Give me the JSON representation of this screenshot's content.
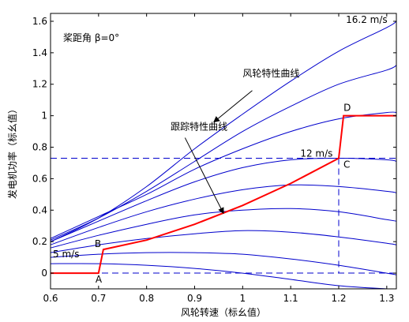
{
  "chart_data": {
    "type": "line",
    "xlabel": "风轮转速（标幺值）",
    "ylabel": "发电机功率（标幺值）",
    "xlim": [
      0.6,
      1.32
    ],
    "ylim": [
      -0.1,
      1.65
    ],
    "xticks": [
      0.6,
      0.7,
      0.8,
      0.9,
      1,
      1.1,
      1.2,
      1.3
    ],
    "xtick_labels": [
      "0.6",
      "0.7",
      "0.8",
      "0.9",
      "1",
      "1.1",
      "1.2",
      "1.3"
    ],
    "yticks": [
      0,
      0.2,
      0.4,
      0.6,
      0.8,
      1,
      1.2,
      1.4,
      1.6
    ],
    "ytick_labels": [
      "0",
      "0.2",
      "0.4",
      "0.6",
      "0.8",
      "1",
      "1.2",
      "1.4",
      "1.6"
    ],
    "grid": false,
    "pitch_label": "桨距角 β=0°",
    "wind_curve_color": "#0000cc",
    "tracking_color": "#ff0000",
    "wind_curves": [
      {
        "name": "",
        "x": [
          0.6,
          0.7,
          0.8,
          0.9,
          1.0,
          1.1,
          1.2,
          1.3,
          1.32
        ],
        "y": [
          0.2,
          0.35,
          0.55,
          0.79,
          1.01,
          1.22,
          1.41,
          1.56,
          1.6
        ]
      },
      {
        "name": "",
        "x": [
          0.6,
          0.7,
          0.8,
          0.9,
          1.0,
          1.1,
          1.2,
          1.3,
          1.32
        ],
        "y": [
          0.21,
          0.35,
          0.52,
          0.71,
          0.9,
          1.06,
          1.2,
          1.29,
          1.32
        ]
      },
      {
        "name": "",
        "x": [
          0.6,
          0.7,
          0.8,
          0.9,
          1.0,
          1.1,
          1.2,
          1.3,
          1.32
        ],
        "y": [
          0.22,
          0.36,
          0.5,
          0.66,
          0.79,
          0.9,
          0.98,
          1.02,
          1.02
        ]
      },
      {
        "name": "",
        "x": [
          0.6,
          0.7,
          0.8,
          0.9,
          1.0,
          1.1,
          1.2,
          1.3,
          1.32
        ],
        "y": [
          0.2,
          0.33,
          0.46,
          0.58,
          0.67,
          0.72,
          0.73,
          0.72,
          0.71
        ]
      },
      {
        "name": "",
        "x": [
          0.6,
          0.7,
          0.8,
          0.9,
          1.0,
          1.1,
          1.2,
          1.3,
          1.32
        ],
        "y": [
          0.18,
          0.29,
          0.39,
          0.47,
          0.53,
          0.56,
          0.55,
          0.52,
          0.51
        ]
      },
      {
        "name": "",
        "x": [
          0.6,
          0.7,
          0.8,
          0.9,
          1.0,
          1.1,
          1.2,
          1.3,
          1.32
        ],
        "y": [
          0.16,
          0.24,
          0.31,
          0.37,
          0.4,
          0.41,
          0.39,
          0.34,
          0.33
        ]
      },
      {
        "name": "",
        "x": [
          0.6,
          0.7,
          0.8,
          0.9,
          1.0,
          1.1,
          1.2,
          1.3,
          1.32
        ],
        "y": [
          0.13,
          0.18,
          0.22,
          0.25,
          0.27,
          0.26,
          0.23,
          0.19,
          0.18
        ]
      },
      {
        "name": "",
        "x": [
          0.6,
          0.7,
          0.8,
          0.9,
          1.0,
          1.1,
          1.2,
          1.3,
          1.32
        ],
        "y": [
          0.1,
          0.12,
          0.13,
          0.13,
          0.12,
          0.09,
          0.05,
          0.0,
          -0.01
        ]
      },
      {
        "name": "",
        "x": [
          0.6,
          0.7,
          0.8,
          0.9,
          1.0,
          1.1,
          1.2,
          1.3,
          1.32
        ],
        "y": [
          0.06,
          0.06,
          0.05,
          0.03,
          0.0,
          -0.04,
          -0.08,
          -0.1,
          -0.1
        ]
      }
    ],
    "tracking_curve": {
      "name": "",
      "x": [
        0.6,
        0.7,
        0.71,
        0.8,
        0.9,
        1.0,
        1.1,
        1.2,
        1.21,
        1.32
      ],
      "y": [
        0.0,
        0.0,
        0.15,
        0.21,
        0.31,
        0.43,
        0.57,
        0.73,
        1.0,
        1.0
      ]
    },
    "reference_lines": {
      "horizontal_y": [
        0.73,
        0.0
      ],
      "vertical_x": 1.2
    },
    "points": [
      {
        "label": "A",
        "x": 0.7,
        "y": 0.0
      },
      {
        "label": "B",
        "x": 0.71,
        "y": 0.15
      },
      {
        "label": "C",
        "x": 1.2,
        "y": 0.73
      },
      {
        "label": "D",
        "x": 1.21,
        "y": 1.0
      }
    ],
    "annotations": [
      {
        "text": "16.2 m/s",
        "x": 1.215,
        "y": 1.59
      },
      {
        "text": "12 m/s",
        "x": 1.12,
        "y": 0.74
      },
      {
        "text": "5 m/s",
        "x": 0.605,
        "y": 0.1
      },
      {
        "text": "风轮特性曲线",
        "x": 1.0,
        "y": 1.25
      },
      {
        "text": "跟踪特性曲线",
        "x": 0.85,
        "y": 0.91
      }
    ],
    "arrows": [
      {
        "from_x": 1.02,
        "from_y": 1.16,
        "to_x": 0.94,
        "to_y": 0.96
      },
      {
        "from_x": 0.88,
        "from_y": 0.86,
        "to_x": 0.96,
        "to_y": 0.38
      }
    ]
  }
}
